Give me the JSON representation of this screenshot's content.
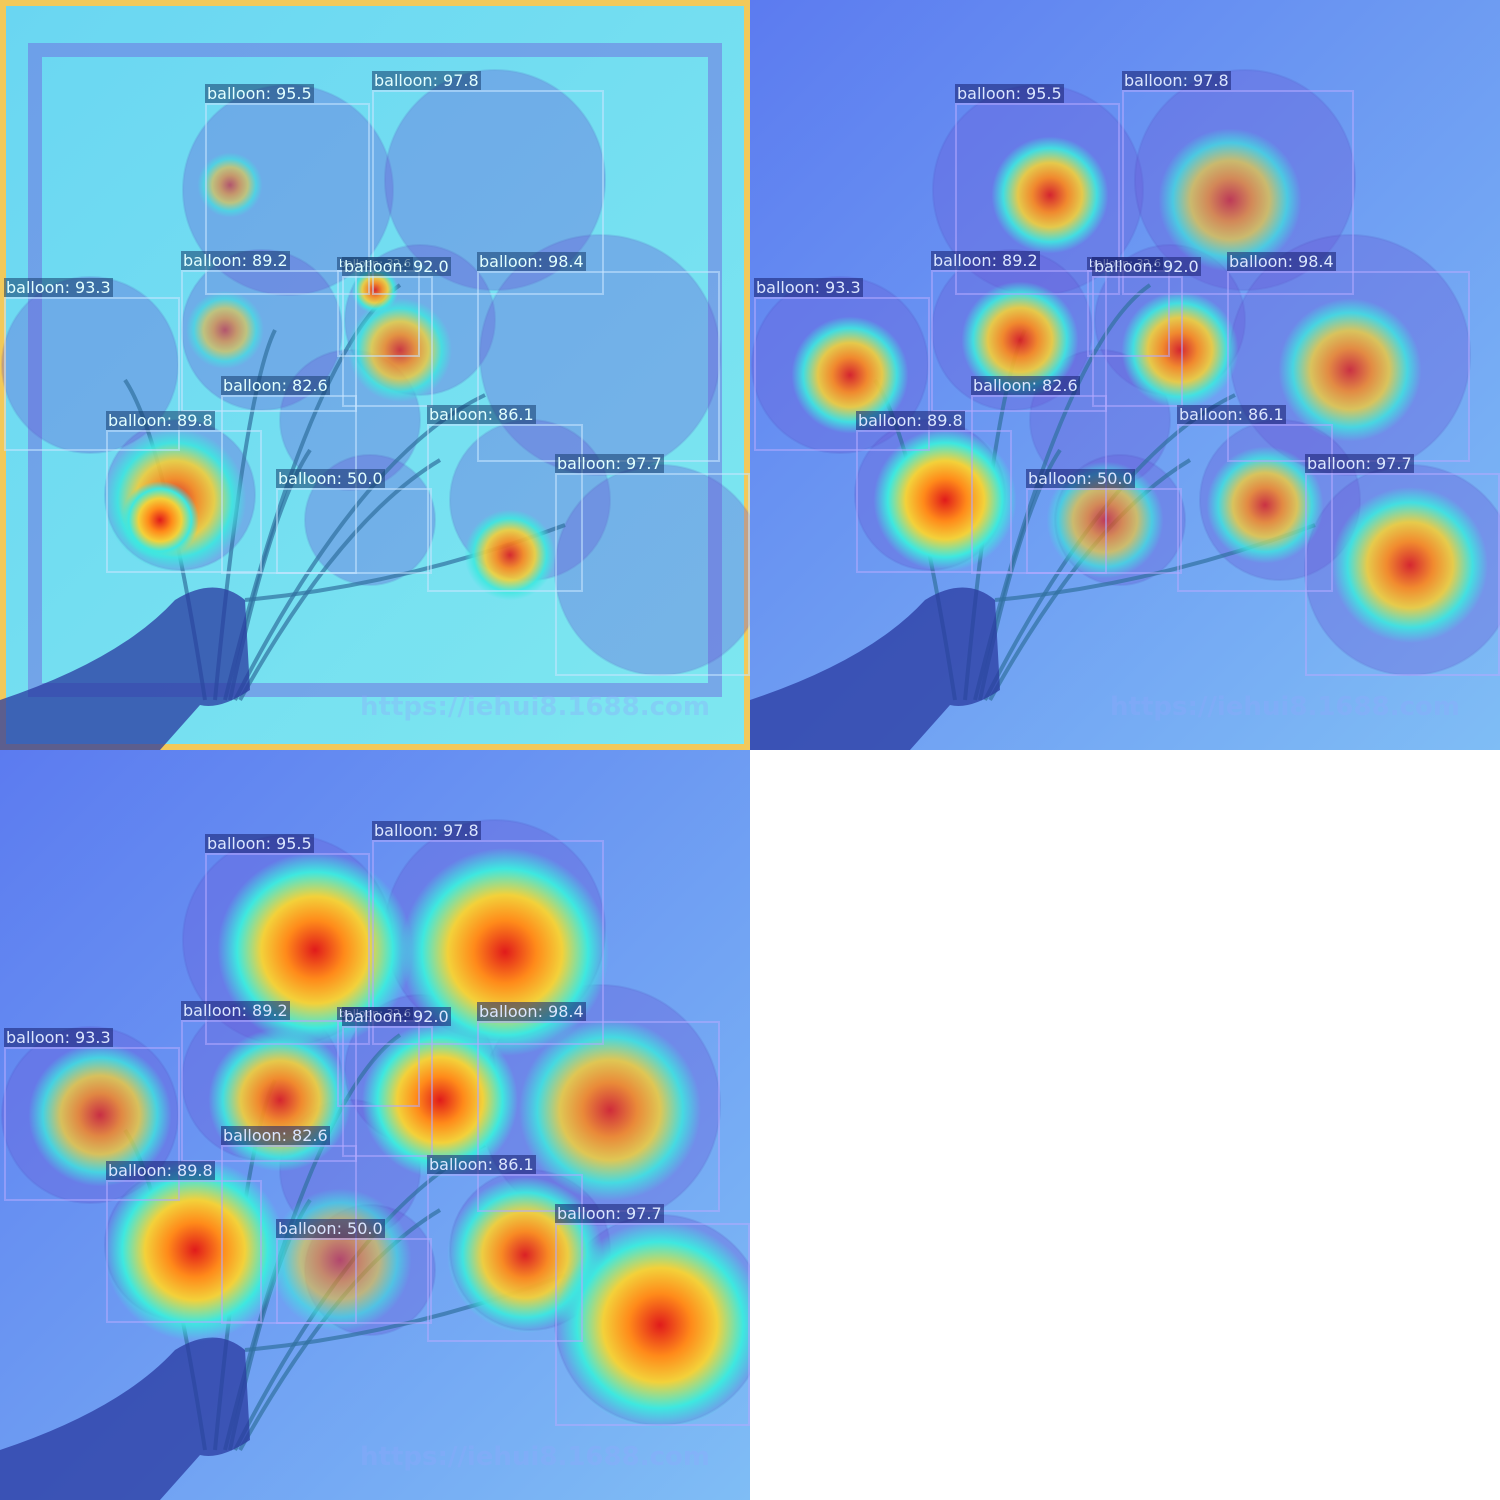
{
  "panels": [
    {
      "id": "p1",
      "style": "noisy"
    },
    {
      "id": "p2",
      "style": "smooth"
    },
    {
      "id": "p3",
      "style": "broad"
    }
  ],
  "detections": [
    {
      "label": "balloon: 95.5"
    },
    {
      "label": "balloon: 97.8"
    },
    {
      "label": "balloon: 89.2"
    },
    {
      "label": "balloon: 32.6"
    },
    {
      "label": "balloon: 92.0"
    },
    {
      "label": "balloon: 98.4"
    },
    {
      "label": "balloon: 93.3"
    },
    {
      "label": "balloon: 82.6"
    },
    {
      "label": "balloon: 89.8"
    },
    {
      "label": "balloon: 86.1"
    },
    {
      "label": "balloon: 50.0"
    },
    {
      "label": "balloon: 97.7"
    }
  ],
  "watermark": "https://iehui8.1688.com",
  "colors": {
    "heat_low": "#3f52e8",
    "heat_mid": "#3ee8e0",
    "heat_high": "#f3d13a",
    "heat_peak": "#e01b1b"
  }
}
